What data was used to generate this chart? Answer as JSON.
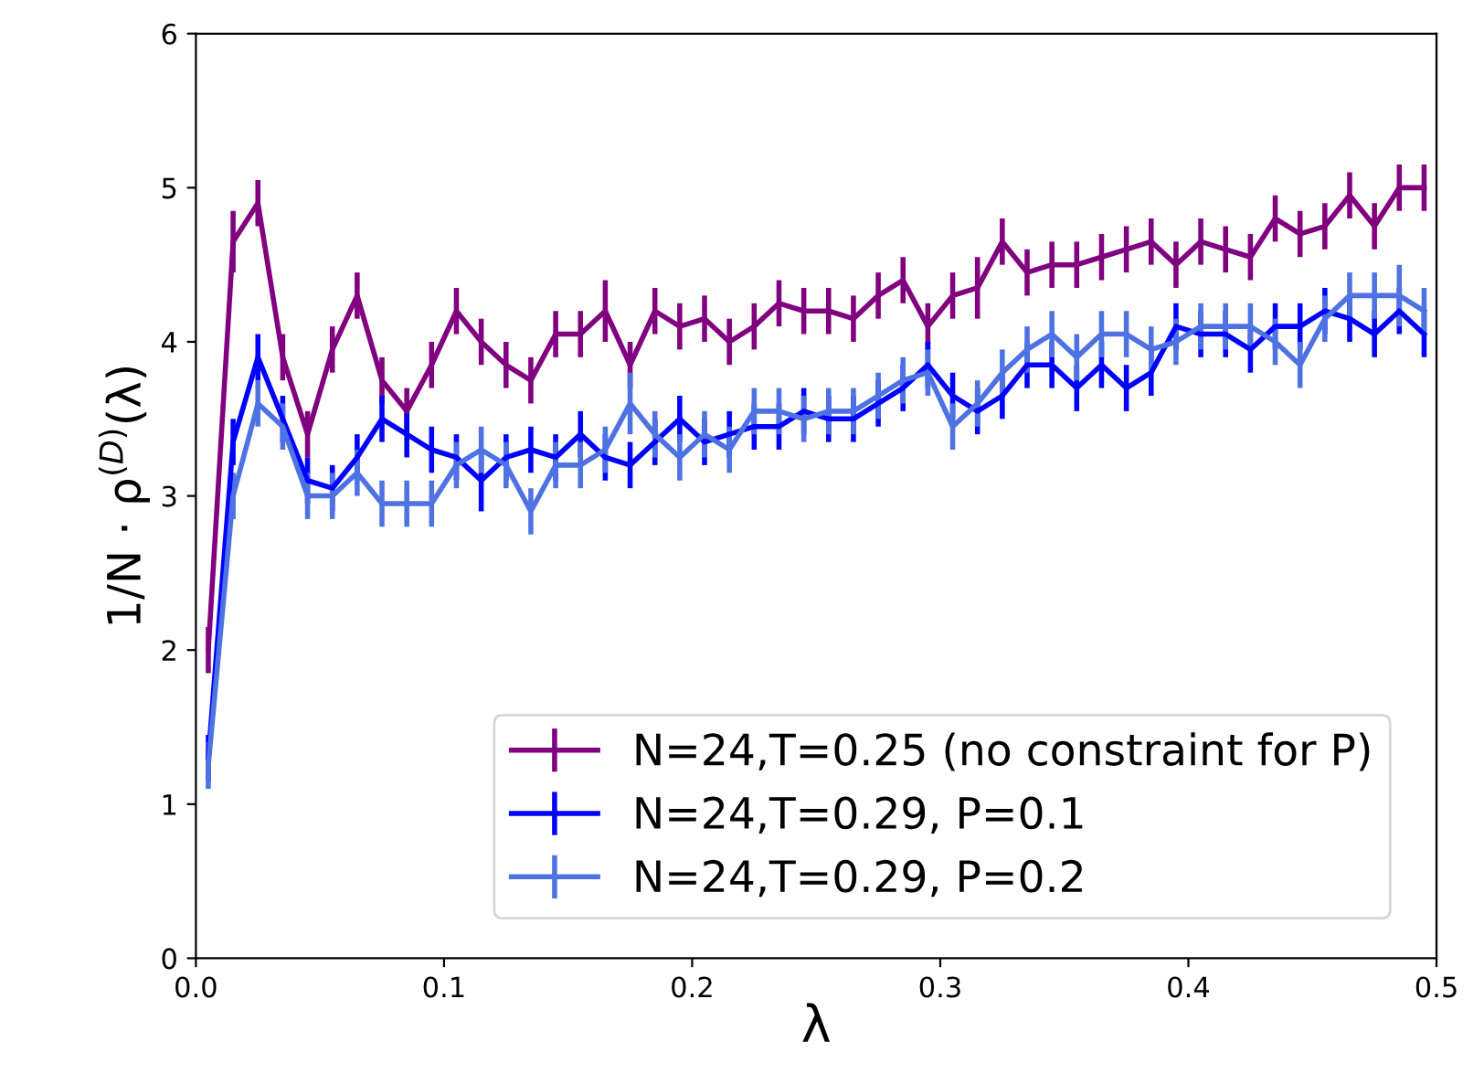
{
  "chart_data": {
    "type": "line",
    "xlabel": "λ",
    "ylabel": "1/N · ρ$^{(D)}$(λ)",
    "x": [
      0.005,
      0.015,
      0.025,
      0.035,
      0.045,
      0.055,
      0.065,
      0.075,
      0.085,
      0.095,
      0.105,
      0.115,
      0.125,
      0.135,
      0.145,
      0.155,
      0.165,
      0.175,
      0.185,
      0.195,
      0.205,
      0.215,
      0.225,
      0.235,
      0.245,
      0.255,
      0.265,
      0.275,
      0.285,
      0.295,
      0.305,
      0.315,
      0.325,
      0.335,
      0.345,
      0.355,
      0.365,
      0.375,
      0.385,
      0.395,
      0.405,
      0.415,
      0.425,
      0.435,
      0.445,
      0.455,
      0.465,
      0.475,
      0.485,
      0.495
    ],
    "xlim": [
      0,
      0.5
    ],
    "xticks": [
      {
        "value": 0,
        "label": "0.0"
      },
      {
        "value": 0.1,
        "label": "0.1"
      },
      {
        "value": 0.2,
        "label": "0.2"
      },
      {
        "value": 0.3,
        "label": "0.3"
      },
      {
        "value": 0.4,
        "label": "0.4"
      },
      {
        "value": 0.5,
        "label": "0.5"
      }
    ],
    "ylim": [
      0,
      6
    ],
    "yticks": [
      0,
      1,
      2,
      3,
      4,
      5,
      6
    ],
    "grid": false,
    "legend": "bottom right",
    "marker": "none",
    "line_style": "solid",
    "series": [
      {
        "name": "N=24,T=0.25 (no constraint for P)",
        "color": "#800080",
        "values": [
          2.0,
          4.65,
          4.9,
          3.9,
          3.4,
          3.95,
          4.3,
          3.75,
          3.55,
          3.85,
          4.2,
          4.0,
          3.85,
          3.75,
          4.05,
          4.05,
          4.2,
          3.85,
          4.2,
          4.1,
          4.15,
          4.0,
          4.1,
          4.25,
          4.2,
          4.2,
          4.15,
          4.3,
          4.4,
          4.1,
          4.3,
          4.35,
          4.65,
          4.45,
          4.5,
          4.5,
          4.55,
          4.6,
          4.65,
          4.5,
          4.65,
          4.6,
          4.55,
          4.8,
          4.7,
          4.75,
          4.95,
          4.75,
          5.0,
          5.0
        ],
        "errors": [
          0.15,
          0.2,
          0.15,
          0.15,
          0.15,
          0.15,
          0.15,
          0.15,
          0.15,
          0.15,
          0.15,
          0.15,
          0.15,
          0.15,
          0.15,
          0.15,
          0.2,
          0.15,
          0.15,
          0.15,
          0.15,
          0.15,
          0.15,
          0.15,
          0.15,
          0.15,
          0.15,
          0.15,
          0.15,
          0.15,
          0.15,
          0.2,
          0.15,
          0.15,
          0.15,
          0.15,
          0.15,
          0.15,
          0.15,
          0.15,
          0.15,
          0.15,
          0.15,
          0.15,
          0.15,
          0.15,
          0.15,
          0.15,
          0.15,
          0.15
        ]
      },
      {
        "name": "N=24,T=0.29, P=0.1",
        "color": "#0000ff",
        "values": [
          1.3,
          3.35,
          3.9,
          3.5,
          3.1,
          3.05,
          3.25,
          3.5,
          3.4,
          3.3,
          3.25,
          3.1,
          3.25,
          3.3,
          3.25,
          3.4,
          3.25,
          3.2,
          3.35,
          3.5,
          3.35,
          3.4,
          3.45,
          3.45,
          3.55,
          3.5,
          3.5,
          3.6,
          3.7,
          3.85,
          3.65,
          3.55,
          3.65,
          3.85,
          3.85,
          3.7,
          3.85,
          3.7,
          3.8,
          4.1,
          4.05,
          4.05,
          3.95,
          4.1,
          4.1,
          4.2,
          4.15,
          4.05,
          4.2,
          4.05
        ],
        "errors": [
          0.15,
          0.15,
          0.15,
          0.15,
          0.15,
          0.15,
          0.15,
          0.15,
          0.15,
          0.15,
          0.15,
          0.2,
          0.15,
          0.15,
          0.15,
          0.15,
          0.15,
          0.15,
          0.15,
          0.15,
          0.15,
          0.15,
          0.15,
          0.15,
          0.15,
          0.15,
          0.15,
          0.15,
          0.15,
          0.15,
          0.15,
          0.15,
          0.15,
          0.15,
          0.15,
          0.15,
          0.15,
          0.15,
          0.15,
          0.15,
          0.15,
          0.15,
          0.15,
          0.15,
          0.15,
          0.15,
          0.15,
          0.15,
          0.15,
          0.15
        ]
      },
      {
        "name": "N=24,T=0.29, P=0.2",
        "color": "#4f72e3",
        "values": [
          1.25,
          3.0,
          3.6,
          3.45,
          3.0,
          3.0,
          3.15,
          2.95,
          2.95,
          2.95,
          3.2,
          3.3,
          3.2,
          2.9,
          3.2,
          3.2,
          3.3,
          3.6,
          3.4,
          3.25,
          3.4,
          3.3,
          3.55,
          3.55,
          3.5,
          3.55,
          3.55,
          3.65,
          3.75,
          3.8,
          3.45,
          3.6,
          3.8,
          3.95,
          4.05,
          3.9,
          4.05,
          4.05,
          3.95,
          4.0,
          4.1,
          4.1,
          4.1,
          4.0,
          3.85,
          4.15,
          4.3,
          4.3,
          4.3,
          4.2
        ],
        "errors": [
          0.15,
          0.15,
          0.15,
          0.15,
          0.15,
          0.15,
          0.15,
          0.15,
          0.15,
          0.15,
          0.15,
          0.15,
          0.15,
          0.15,
          0.15,
          0.15,
          0.15,
          0.2,
          0.15,
          0.15,
          0.15,
          0.15,
          0.15,
          0.15,
          0.15,
          0.15,
          0.15,
          0.15,
          0.15,
          0.15,
          0.15,
          0.15,
          0.15,
          0.15,
          0.15,
          0.15,
          0.15,
          0.15,
          0.15,
          0.15,
          0.15,
          0.15,
          0.15,
          0.15,
          0.15,
          0.15,
          0.15,
          0.15,
          0.2,
          0.15
        ]
      }
    ]
  }
}
